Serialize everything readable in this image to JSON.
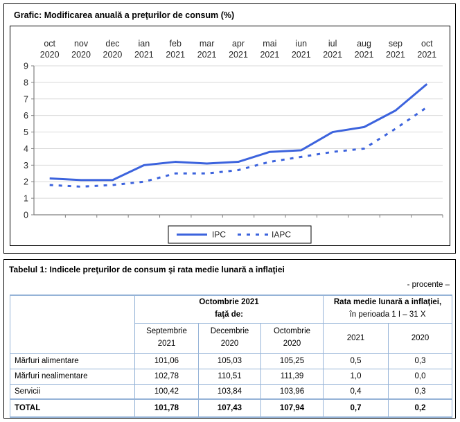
{
  "chart_section": {
    "title": "Grafic: Modificarea anuală a preţurilor de consum (%)"
  },
  "chart_data": {
    "type": "line",
    "title": "Modificarea anuală a preţurilor de consum (%)",
    "categories": [
      "oct 2020",
      "nov 2020",
      "dec 2020",
      "ian 2021",
      "feb 2021",
      "mar 2021",
      "apr 2021",
      "mai 2021",
      "iun 2021",
      "iul 2021",
      "aug 2021",
      "sep 2021",
      "oct 2021"
    ],
    "series": [
      {
        "name": "IPC",
        "style": "solid",
        "values": [
          2.2,
          2.1,
          2.1,
          3.0,
          3.2,
          3.1,
          3.2,
          3.8,
          3.9,
          5.0,
          5.3,
          6.3,
          7.9
        ]
      },
      {
        "name": "IAPC",
        "style": "dashed",
        "values": [
          1.8,
          1.7,
          1.8,
          2.0,
          2.5,
          2.5,
          2.7,
          3.2,
          3.5,
          3.8,
          4.0,
          5.2,
          6.5
        ]
      }
    ],
    "xlabel": "",
    "ylabel": "",
    "ylim": [
      0,
      9
    ],
    "ytick_step": 1,
    "grid": true,
    "legend_position": "bottom-center",
    "line_color": "#3c63dd",
    "gridline_color": "#d9d9d9",
    "axis_color": "#808080"
  },
  "table_section": {
    "title": "Tabelul 1: Indicele preţurilor de consum şi rata medie lunară a inflaţiei",
    "unit_note": "- procente –",
    "table": {
      "group_left": {
        "line1": "Octombrie 2021",
        "line2": "faţă de:"
      },
      "group_right": {
        "line1": "Rata medie lunară a inflaţiei,",
        "line2": "în perioada 1 I – 31 X"
      },
      "sub_headers": [
        {
          "line1": "Septembrie",
          "line2": "2021"
        },
        {
          "line1": "Decembrie",
          "line2": "2020"
        },
        {
          "line1": "Octombrie",
          "line2": "2020"
        },
        {
          "line1": "2021",
          "line2": ""
        },
        {
          "line1": "2020",
          "line2": ""
        }
      ],
      "rows": [
        {
          "label": "Mărfuri alimentare",
          "values": [
            "101,06",
            "105,03",
            "105,25",
            "0,5",
            "0,3"
          ]
        },
        {
          "label": "Mărfuri nealimentare",
          "values": [
            "102,78",
            "110,51",
            "111,39",
            "1,0",
            "0,0"
          ]
        },
        {
          "label": "Servicii",
          "values": [
            "100,42",
            "103,84",
            "103,96",
            "0,4",
            "0,3"
          ]
        },
        {
          "label": "TOTAL",
          "values": [
            "101,78",
            "107,43",
            "107,94",
            "0,7",
            "0,2"
          ]
        }
      ]
    }
  }
}
